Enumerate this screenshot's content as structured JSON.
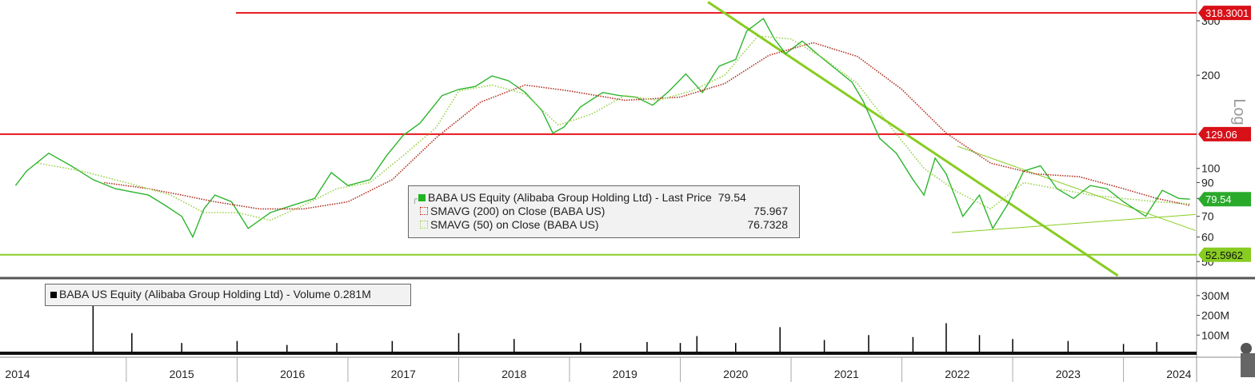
{
  "chart_data": {
    "type": "line",
    "title": "",
    "scale": "log",
    "axis_label_right": "Log",
    "x_labels": [
      "2014",
      "2015",
      "2016",
      "2017",
      "2018",
      "2019",
      "2020",
      "2021",
      "2022",
      "2023",
      "2024"
    ],
    "price_axis_ticks": [
      "300",
      "200",
      "100",
      "90",
      "80",
      "70",
      "60",
      "50"
    ],
    "price_axis_tick_values": [
      300,
      200,
      100,
      90,
      80,
      70,
      60,
      50
    ],
    "volume_axis_ticks": [
      "300M",
      "200M",
      "100M"
    ],
    "volume_axis_tick_values": [
      300,
      200,
      100
    ],
    "ylim": [
      45,
      330
    ],
    "volume_ylim_millions": [
      0,
      360
    ],
    "grid": false,
    "legend_placement": "center",
    "series": [
      {
        "name": "BABA US Equity (Alibaba Group Holding Ltd) - Last Price",
        "last_value": "79.54",
        "color": "#2db52d",
        "t": [
          2014.0,
          2014.1,
          2014.3,
          2014.5,
          2014.7,
          2014.9,
          2015.05,
          2015.2,
          2015.35,
          2015.5,
          2015.6,
          2015.7,
          2015.8,
          2015.95,
          2016.1,
          2016.3,
          2016.5,
          2016.7,
          2016.85,
          2017.0,
          2017.2,
          2017.35,
          2017.5,
          2017.65,
          2017.85,
          2018.0,
          2018.15,
          2018.3,
          2018.45,
          2018.6,
          2018.75,
          2018.85,
          2018.95,
          2019.1,
          2019.3,
          2019.45,
          2019.6,
          2019.75,
          2019.9,
          2020.05,
          2020.2,
          2020.35,
          2020.5,
          2020.6,
          2020.75,
          2020.85,
          2020.95,
          2021.1,
          2021.25,
          2021.4,
          2021.55,
          2021.65,
          2021.8,
          2021.95,
          2022.1,
          2022.2,
          2022.3,
          2022.4,
          2022.55,
          2022.7,
          2022.82,
          2022.95,
          2023.1,
          2023.25,
          2023.4,
          2023.55,
          2023.7,
          2023.85,
          2024.0,
          2024.1,
          2024.2,
          2024.35,
          2024.5,
          2024.6
        ],
        "v": [
          88,
          98,
          112,
          102,
          92,
          86,
          84,
          82,
          76,
          70,
          60,
          74,
          82,
          78,
          64,
          72,
          76,
          80,
          97,
          88,
          92,
          110,
          128,
          140,
          172,
          180,
          184,
          199,
          192,
          176,
          154,
          130,
          136,
          158,
          176,
          172,
          170,
          160,
          178,
          202,
          176,
          214,
          225,
          278,
          305,
          262,
          235,
          258,
          232,
          210,
          190,
          165,
          125,
          112,
          92,
          82,
          108,
          96,
          70,
          82,
          64,
          76,
          98,
          102,
          86,
          80,
          88,
          86,
          78,
          74,
          70,
          85,
          80,
          79.54
        ]
      },
      {
        "name": "SMAVG (200)  on Close (BABA US)",
        "last_value": "75.967",
        "color": "#b03020",
        "t": [
          2014.8,
          2015.2,
          2015.5,
          2015.8,
          2016.2,
          2016.6,
          2017.0,
          2017.4,
          2017.8,
          2018.2,
          2018.6,
          2019.0,
          2019.5,
          2020.0,
          2020.4,
          2020.8,
          2021.2,
          2021.6,
          2022.0,
          2022.4,
          2022.8,
          2023.2,
          2023.6,
          2024.0,
          2024.3,
          2024.6
        ],
        "v": [
          90,
          86,
          82,
          78,
          74,
          74,
          78,
          92,
          126,
          164,
          186,
          178,
          166,
          170,
          188,
          232,
          255,
          230,
          180,
          130,
          104,
          96,
          94,
          86,
          80,
          75.967
        ]
      },
      {
        "name": "SMAVG (50)  on Close (BABA US)",
        "last_value": "76.7328",
        "color": "#9ad04a",
        "t": [
          2014.2,
          2014.6,
          2015.0,
          2015.4,
          2015.7,
          2016.0,
          2016.3,
          2016.6,
          2016.9,
          2017.2,
          2017.5,
          2017.8,
          2018.0,
          2018.3,
          2018.6,
          2018.9,
          2019.2,
          2019.5,
          2019.8,
          2020.1,
          2020.4,
          2020.7,
          2021.0,
          2021.3,
          2021.6,
          2021.9,
          2022.2,
          2022.5,
          2022.8,
          2023.1,
          2023.4,
          2023.7,
          2024.0,
          2024.3,
          2024.6
        ],
        "v": [
          104,
          98,
          90,
          82,
          72,
          72,
          68,
          76,
          86,
          90,
          110,
          136,
          178,
          186,
          174,
          138,
          150,
          172,
          166,
          178,
          200,
          268,
          262,
          226,
          188,
          136,
          100,
          84,
          74,
          90,
          86,
          82,
          80,
          78,
          76.7328
        ]
      },
      {
        "name": "BABA US Equity (Alibaba Group Holding Ltd) - Volume",
        "last_value": "0.281M",
        "color": "#000000",
        "t": [
          2014.7,
          2015.05,
          2015.5,
          2016.0,
          2016.45,
          2016.9,
          2017.4,
          2018.0,
          2018.5,
          2019.1,
          2019.7,
          2020.0,
          2020.15,
          2020.5,
          2020.9,
          2021.3,
          2021.7,
          2022.1,
          2022.4,
          2022.7,
          2023.0,
          2023.5,
          2024.0,
          2024.3
        ],
        "v": [
          300,
          110,
          60,
          70,
          50,
          60,
          70,
          110,
          80,
          60,
          65,
          60,
          95,
          60,
          140,
          75,
          100,
          90,
          160,
          100,
          80,
          70,
          55,
          65
        ]
      }
    ],
    "horizontal_lines": [
      {
        "value": 318.3001,
        "label": "318.3001",
        "color": "#e8141c"
      },
      {
        "value": 129.06,
        "label": "129.06",
        "color": "#e8141c"
      },
      {
        "value": 52.5962,
        "label": "52.5962",
        "color": "#88d024"
      }
    ],
    "trendlines": [
      {
        "from": {
          "t": 2020.25,
          "v": 345
        },
        "to": {
          "t": 2023.95,
          "v": 45
        },
        "color": "#88cc22",
        "weight": "thick"
      },
      {
        "from": {
          "t": 2022.5,
          "v": 118
        },
        "to": {
          "t": 2024.65,
          "v": 63
        },
        "color": "#88cc22",
        "weight": "thin"
      },
      {
        "from": {
          "t": 2022.45,
          "v": 62
        },
        "to": {
          "t": 2024.65,
          "v": 71
        },
        "color": "#88cc22",
        "weight": "thin"
      }
    ],
    "value_tags": [
      {
        "value": 318.3001,
        "text": "318.3001",
        "color": "#d81018"
      },
      {
        "value": 129.06,
        "text": "129.06",
        "color": "#d81018"
      },
      {
        "value": 79.54,
        "text": "79.54",
        "color": "#2aaa2a"
      },
      {
        "value": 52.5962,
        "text": "52.5962",
        "color": "#88cc22"
      }
    ]
  },
  "legend": {
    "price_line": {
      "label": "BABA US Equity (Alibaba Group Holding Ltd) - Last Price",
      "value": "79.54"
    },
    "sma200": {
      "label": "SMAVG (200)  on Close (BABA US)",
      "value": "75.967"
    },
    "sma50": {
      "label": "SMAVG (50)  on Close (BABA US)",
      "value": "76.7328"
    },
    "volume": {
      "label": "BABA US Equity (Alibaba Group Holding Ltd) - Volume 0.281M"
    }
  }
}
